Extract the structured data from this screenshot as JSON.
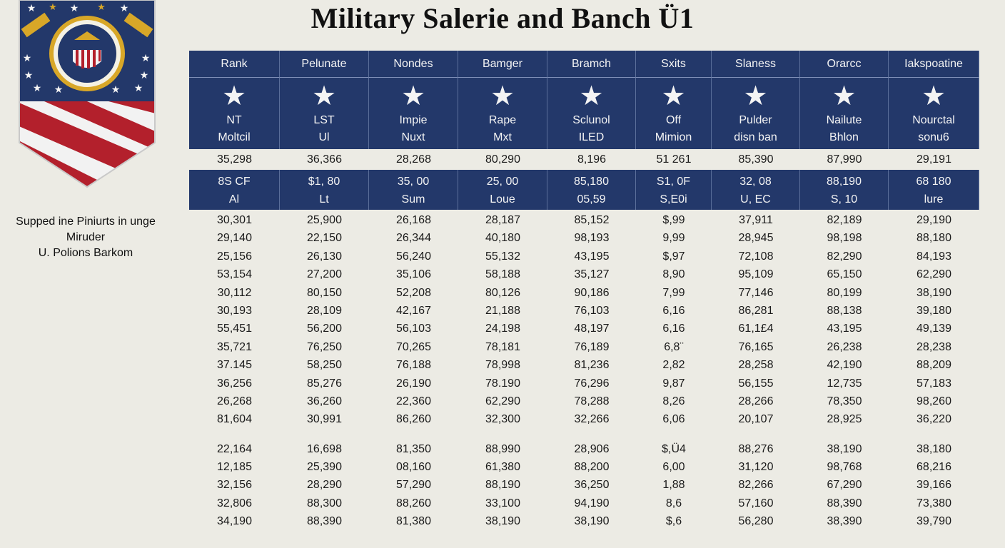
{
  "title": "Military Salerie and Banch Ü1",
  "side_caption": {
    "line1": "Supped ine Piniurts in unge",
    "line2": "Miruder",
    "line3": "U. Polions Barkom"
  },
  "columns": [
    "Rank",
    "Pelunate",
    "Nondes",
    "Bamger",
    "Bramch",
    "Sxits",
    "Slaness",
    "Orarcc",
    "Iakspoatine"
  ],
  "star_row": [
    {
      "l1": "NT",
      "l2": "Moltcil"
    },
    {
      "l1": "LST",
      "l2": "Ul"
    },
    {
      "l1": "Impie",
      "l2": "Nuxt"
    },
    {
      "l1": "Rape",
      "l2": "Mxt"
    },
    {
      "l1": "Sclunol",
      "l2": "ILED"
    },
    {
      "l1": "Off",
      "l2": "Mimion"
    },
    {
      "l1": "Pulder",
      "l2": "disn ban"
    },
    {
      "l1": "Nailute",
      "l2": "Bhlon"
    },
    {
      "l1": "Nourctal",
      "l2": "sonu6"
    }
  ],
  "first_row": [
    "35,298",
    "36,366",
    "28,268",
    "80,290",
    "8,196",
    "51 261",
    "85,390",
    "87,990",
    "29,191"
  ],
  "band_row": [
    {
      "l1": "8S CF",
      "l2": "Al"
    },
    {
      "l1": "$1, 80",
      "l2": "Lt"
    },
    {
      "l1": "35, 00",
      "l2": "Sum"
    },
    {
      "l1": "25, 00",
      "l2": "Loue"
    },
    {
      "l1": "85,180",
      "l2": "05,59"
    },
    {
      "l1": "S1, 0F",
      "l2": "S,E0i"
    },
    {
      "l1": "32, 08",
      "l2": "U, EC"
    },
    {
      "l1": "88,190",
      "l2": "S, 10"
    },
    {
      "l1": "68 180",
      "l2": "lure"
    }
  ],
  "rows_a": [
    [
      "30,301",
      "25,900",
      "26,168",
      "28,187",
      "85,152",
      "$,99",
      "37,911",
      "82,189",
      "29,190"
    ],
    [
      "29,140",
      "22,150",
      "26,344",
      "40,180",
      "98,193",
      "9,99",
      "28,945",
      "98,198",
      "88,180"
    ],
    [
      "25,156",
      "26,130",
      "56,240",
      "55,132",
      "43,195",
      "$,97",
      "72,108",
      "82,290",
      "84,193"
    ],
    [
      "53,154",
      "27,200",
      "35,106",
      "58,188",
      "35,127",
      "8,90",
      "95,109",
      "65,150",
      "62,290"
    ],
    [
      "30,112",
      "80,150",
      "52,208",
      "80,126",
      "90,186",
      "7,99",
      "77,146",
      "80,199",
      "38,190"
    ],
    [
      "30,193",
      "28,109",
      "42,167",
      "21,188",
      "76,103",
      "6,16",
      "86,281",
      "88,138",
      "39,180"
    ],
    [
      "55,451",
      "56,200",
      "56,103",
      "24,198",
      "48,197",
      "6,16",
      "61,1£4",
      "43,195",
      "49,139"
    ],
    [
      "35,721",
      "76,250",
      "70,265",
      "78,181",
      "76,189",
      "6,8¨",
      "76,165",
      "26,238",
      "28,238"
    ],
    [
      "37.145",
      "58,250",
      "76,188",
      "78,998",
      "81,236",
      "2,82",
      "28,258",
      "42,190",
      "88,209"
    ],
    [
      "36,256",
      "85,276",
      "26,190",
      "78.190",
      "76,296",
      "9,87",
      "56,155",
      "12,735",
      "57,183"
    ],
    [
      "26,268",
      "36,260",
      "22,360",
      "62,290",
      "78,288",
      "8,26",
      "28,266",
      "78,350",
      "98,260"
    ],
    [
      "81,604",
      "30,991",
      "86,260",
      "32,300",
      "32,266",
      "6,06",
      "20,107",
      "28,925",
      "36,220"
    ]
  ],
  "rows_b": [
    [
      "22,164",
      "16,698",
      "81,350",
      "88,990",
      "28,906",
      "$,Ü4",
      "88,276",
      "38,190",
      "38,180"
    ],
    [
      "12,185",
      "25,390",
      "08,160",
      "61,380",
      "88,200",
      "6,00",
      "31,120",
      "98,768",
      "68,216"
    ],
    [
      "32,156",
      "28,290",
      "57,290",
      "88,190",
      "36,250",
      "1,88",
      "82,266",
      "67,290",
      "39,166"
    ],
    [
      "32,806",
      "88,300",
      "88,260",
      "33,100",
      "94,190",
      "8,6",
      "57,160",
      "88,390",
      "73,380"
    ],
    [
      "34,190",
      "88,390",
      "81,380",
      "38,190",
      "38,190",
      "$,6",
      "56,280",
      "38,390",
      "39,790"
    ]
  ],
  "colors": {
    "navy": "#23386a",
    "red": "#b3202c",
    "gold": "#d8a728",
    "paper": "#ecebe4"
  }
}
